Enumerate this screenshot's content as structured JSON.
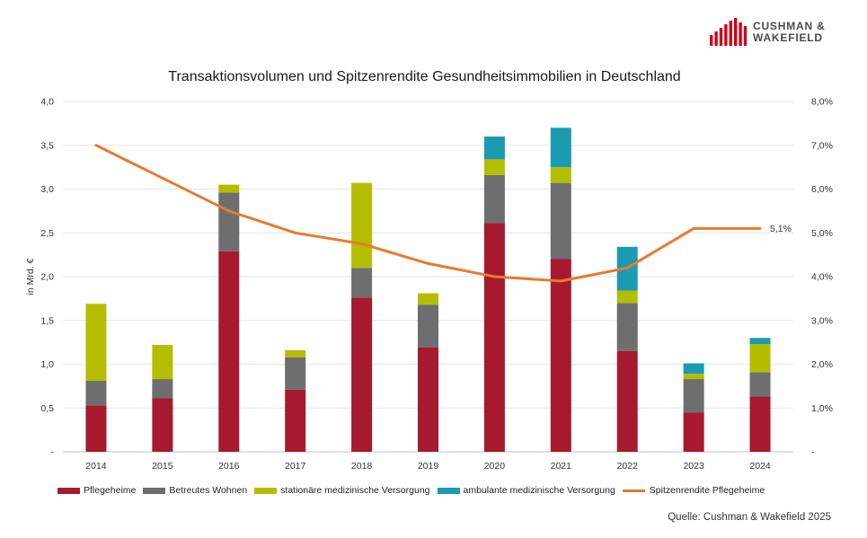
{
  "brand": {
    "line1": "CUSHMAN &",
    "line2": "WAKEFIELD",
    "color": "#d0021b"
  },
  "source": "Quelle: Cushman & Wakefield 2025",
  "chart_data": {
    "type": "bar",
    "stacked": true,
    "title": "Transaktionsvolumen und Spitzenrendite Gesundheitsimmobilien in Deutschland",
    "ylabel": "in Mrd. €",
    "y2label": "",
    "categories": [
      "2014",
      "2015",
      "2016",
      "2017",
      "2018",
      "2019",
      "2020",
      "2021",
      "2022",
      "2023",
      "2024"
    ],
    "ylim": [
      0,
      4.0
    ],
    "yticks": [
      "-",
      "0,5",
      "1,0",
      "1,5",
      "2,0",
      "2,5",
      "3,0",
      "3,5",
      "4,0"
    ],
    "y2lim": [
      0,
      8.0
    ],
    "y2ticks": [
      "-",
      "1,0%",
      "2,0%",
      "3,0%",
      "4,0%",
      "5,0%",
      "6,0%",
      "7,0%",
      "8,0%"
    ],
    "grid": true,
    "legend_position": "bottom",
    "series": [
      {
        "name": "Pflegeheime",
        "color": "#a6192e",
        "values": [
          0.53,
          0.61,
          2.29,
          0.71,
          1.76,
          1.19,
          2.61,
          2.2,
          1.15,
          0.45,
          0.63
        ]
      },
      {
        "name": "Betreutes Wohnen",
        "color": "#6e6e6e",
        "values": [
          0.28,
          0.22,
          0.67,
          0.37,
          0.34,
          0.49,
          0.55,
          0.87,
          0.55,
          0.38,
          0.28
        ]
      },
      {
        "name": "stationäre medizinische Versorgung",
        "color": "#b5bd00",
        "values": [
          0.88,
          0.39,
          0.09,
          0.08,
          0.97,
          0.13,
          0.18,
          0.18,
          0.14,
          0.06,
          0.32
        ]
      },
      {
        "name": "ambulante medizinische Versorgung",
        "color": "#1a9bb2",
        "values": [
          0,
          0,
          0,
          0,
          0,
          0,
          0.26,
          0.45,
          0.5,
          0.12,
          0.07
        ]
      }
    ],
    "line_series": {
      "name": "Spitzenrendite Pflegeheime",
      "color": "#e87a2e",
      "axis": "secondary",
      "values": [
        7.0,
        6.25,
        5.5,
        5.0,
        4.75,
        4.3,
        4.0,
        3.9,
        4.2,
        5.1,
        5.1
      ],
      "annotation": "5,1%"
    }
  }
}
